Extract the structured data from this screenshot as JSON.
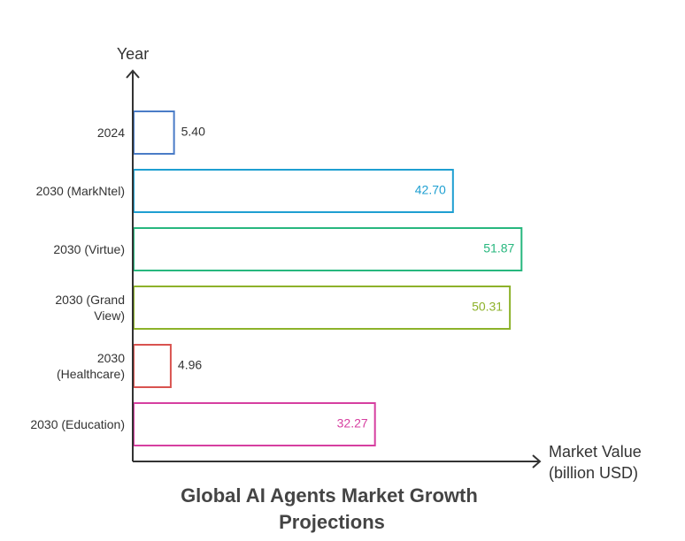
{
  "chart_data": {
    "type": "bar",
    "orientation": "horizontal",
    "title_lines": [
      "Global AI Agents Market Growth",
      "Projections"
    ],
    "ylabel": "Year",
    "xlabel_lines": [
      "Market Value",
      "(billion USD)"
    ],
    "grid": false,
    "xlim": [
      0,
      60
    ],
    "categories": [
      {
        "lines": [
          "2024"
        ]
      },
      {
        "lines": [
          "2030 (MarkNtel)"
        ]
      },
      {
        "lines": [
          "2030 (Virtue)"
        ]
      },
      {
        "lines": [
          "2030 (Grand",
          "View)"
        ]
      },
      {
        "lines": [
          "2030",
          "(Healthcare)"
        ]
      },
      {
        "lines": [
          "2030 (Education)"
        ]
      }
    ],
    "values": [
      5.4,
      42.7,
      51.87,
      50.31,
      4.96,
      32.27
    ],
    "value_labels": [
      "5.40",
      "42.70",
      "51.87",
      "50.31",
      "4.96",
      "32.27"
    ],
    "colors": [
      "#4a7cc7",
      "#1e9fd1",
      "#27b77e",
      "#8db22a",
      "#d9534f",
      "#d63fa0"
    ],
    "axis_color": "#333333"
  }
}
